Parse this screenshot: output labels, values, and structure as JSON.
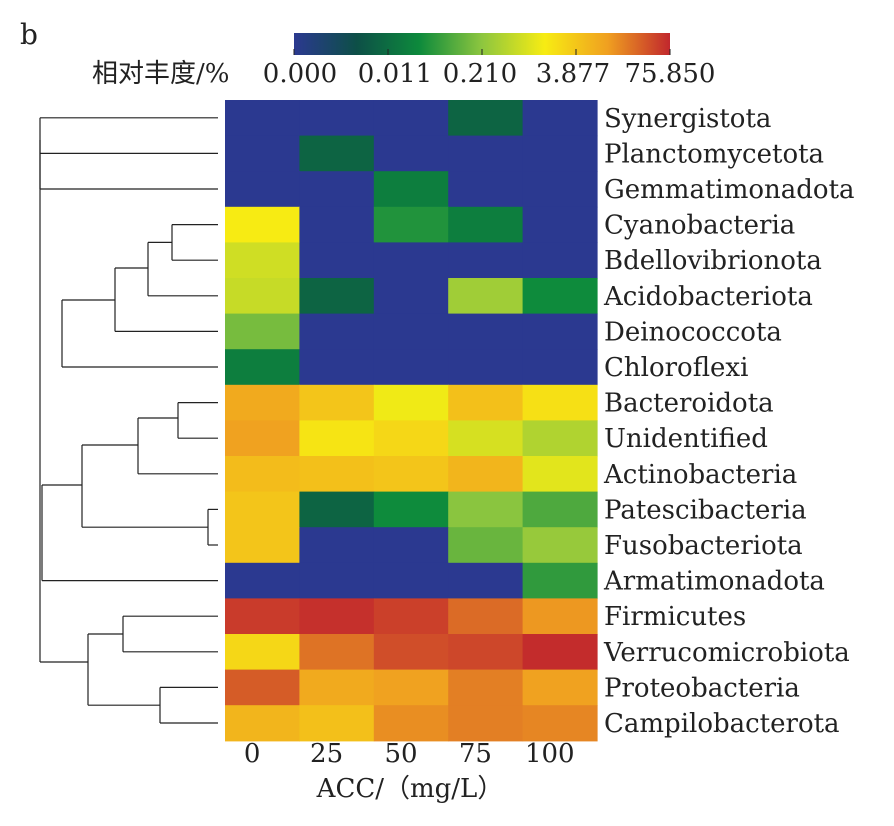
{
  "panel_label": "b",
  "colorbar": {
    "label": "相对丰度/%",
    "tick_labels": [
      "0.000",
      "0.011",
      "0.210",
      "3.877",
      "75.850"
    ],
    "colors": [
      "#2b3990",
      "#0d4f47",
      "#0d8a3c",
      "#8dc63f",
      "#f7ec13",
      "#f0a020",
      "#c1272d"
    ]
  },
  "chart_data": {
    "type": "heatmap",
    "title": "",
    "xlabel": "ACC/（mg/L）",
    "ylabel": "",
    "x": [
      "0",
      "25",
      "50",
      "75",
      "100"
    ],
    "rows": [
      "Synergistota",
      "Planctomycetota",
      "Gemmatimonadota",
      "Cyanobacteria",
      "Bdellovibrionota",
      "Acidobacteriota",
      "Deinococcota",
      "Chloroflexi",
      "Bacteroidota",
      "Unidentified",
      "Actinobacteria",
      "Patescibacteria",
      "Fusobacteriota",
      "Armatimonadota",
      "Firmicutes",
      "Verrucomicrobiota",
      "Proteobacteria",
      "Campilobacterota"
    ],
    "color_scale": "log-like, 0.000 (blue) to 75.850 (red)",
    "values": [
      [
        0,
        0,
        0,
        0.01,
        0
      ],
      [
        0,
        0.01,
        0,
        0,
        0
      ],
      [
        0,
        0,
        0.02,
        0,
        0
      ],
      [
        1.5,
        0,
        0.04,
        0.02,
        0
      ],
      [
        0.7,
        0,
        0,
        0,
        0
      ],
      [
        0.6,
        0.01,
        0,
        0.3,
        0.03
      ],
      [
        0.15,
        0,
        0,
        0,
        0
      ],
      [
        0.02,
        0,
        0,
        0,
        0
      ],
      [
        8,
        4,
        1.3,
        4.5,
        2
      ],
      [
        10,
        1.8,
        2.5,
        0.8,
        0.4
      ],
      [
        5,
        4.5,
        4,
        6,
        1
      ],
      [
        4,
        0.01,
        0.03,
        0.2,
        0.08
      ],
      [
        4,
        0,
        0,
        0.12,
        0.25
      ],
      [
        0,
        0,
        0,
        0,
        0.05
      ],
      [
        55,
        65,
        50,
        25,
        12
      ],
      [
        2.5,
        22,
        40,
        45,
        70
      ],
      [
        32,
        8,
        10,
        18,
        10
      ],
      [
        6,
        4.5,
        14,
        18,
        16
      ]
    ],
    "dendrogram": "left, hierarchical clustering of rows"
  }
}
